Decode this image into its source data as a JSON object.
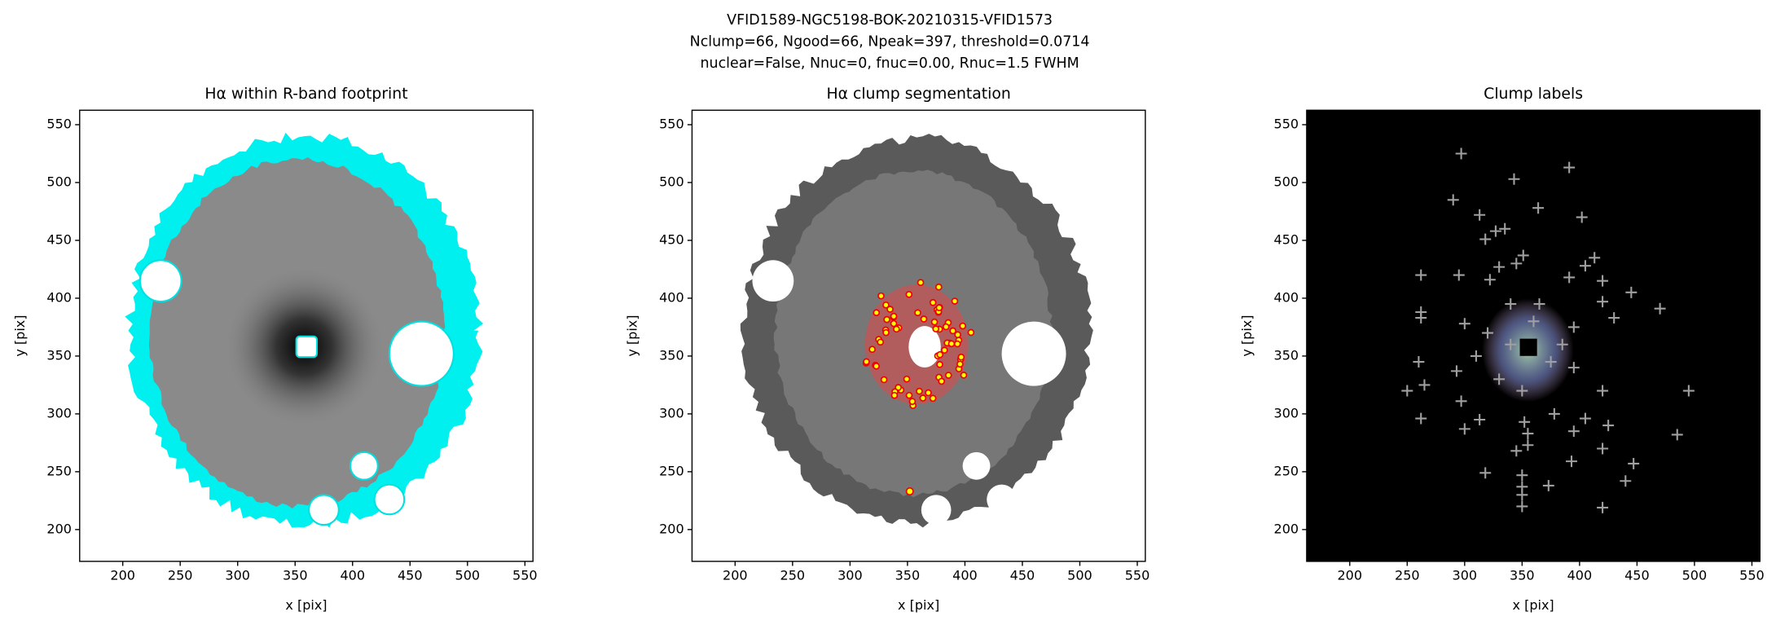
{
  "figure_title": [
    "VFID1589-NGC5198-BOK-20210315-VFID1573",
    "Nclump=66, Ngood=66, Npeak=397, threshold=0.0714",
    "nuclear=False, Nnuc=0, fnuc=0.00, Rnuc=1.5 FWHM"
  ],
  "chart_data": [
    {
      "type": "image",
      "title": "Hα within R-band footprint",
      "xlabel": "x [pix]",
      "ylabel": "y [pix]",
      "xlim": [
        162.5,
        557
      ],
      "ylim": [
        172.5,
        562.5
      ],
      "xticks": [
        200,
        250,
        300,
        350,
        400,
        450,
        500,
        550
      ],
      "yticks": [
        200,
        250,
        300,
        350,
        400,
        450,
        500,
        550
      ]
    },
    {
      "type": "image",
      "title": "Hα clump segmentation",
      "xlabel": "x [pix]",
      "ylabel": "y [pix]",
      "xlim": [
        162.5,
        557
      ],
      "ylim": [
        172.5,
        562.5
      ],
      "xticks": [
        200,
        250,
        300,
        350,
        400,
        450,
        500,
        550
      ],
      "yticks": [
        200,
        250,
        300,
        350,
        400,
        450,
        500,
        550
      ]
    },
    {
      "type": "scatter",
      "title": "Clump labels",
      "xlabel": "x [pix]",
      "ylabel": "y [pix]",
      "xlim": [
        162.5,
        557
      ],
      "ylim": [
        172.5,
        562.5
      ],
      "xticks": [
        200,
        250,
        300,
        350,
        400,
        450,
        500,
        550
      ],
      "yticks": [
        200,
        250,
        300,
        350,
        400,
        450,
        500,
        550
      ],
      "color": "#a0a0a0",
      "x": [
        297,
        391,
        343,
        364,
        290,
        402,
        313,
        327,
        335,
        318,
        351,
        345,
        330,
        413,
        405,
        262,
        295,
        322,
        391,
        420,
        445,
        470,
        262,
        262,
        420,
        430,
        300,
        260,
        265,
        250,
        293,
        297,
        420,
        495,
        262,
        300,
        313,
        352,
        378,
        405,
        425,
        485,
        355,
        395,
        345,
        355,
        393,
        447,
        318,
        350,
        350,
        350,
        373,
        440,
        350,
        420,
        420,
        340,
        360,
        375,
        330,
        350,
        385,
        320,
        365,
        395,
        340,
        310,
        395
      ],
      "y": [
        525,
        513,
        503,
        478,
        485,
        470,
        472,
        458,
        460,
        451,
        437,
        430,
        427,
        435,
        428,
        420,
        420,
        416,
        418,
        415,
        405,
        391,
        388,
        383,
        397,
        383,
        378,
        345,
        325,
        320,
        337,
        311,
        320,
        320,
        296,
        287,
        295,
        293,
        300,
        296,
        290,
        282,
        283,
        285,
        268,
        273,
        259,
        257,
        249,
        247,
        237,
        230,
        238,
        242,
        220,
        219,
        270,
        360,
        380,
        345,
        330,
        320,
        360,
        370,
        395,
        340,
        395,
        350,
        375
      ]
    }
  ]
}
